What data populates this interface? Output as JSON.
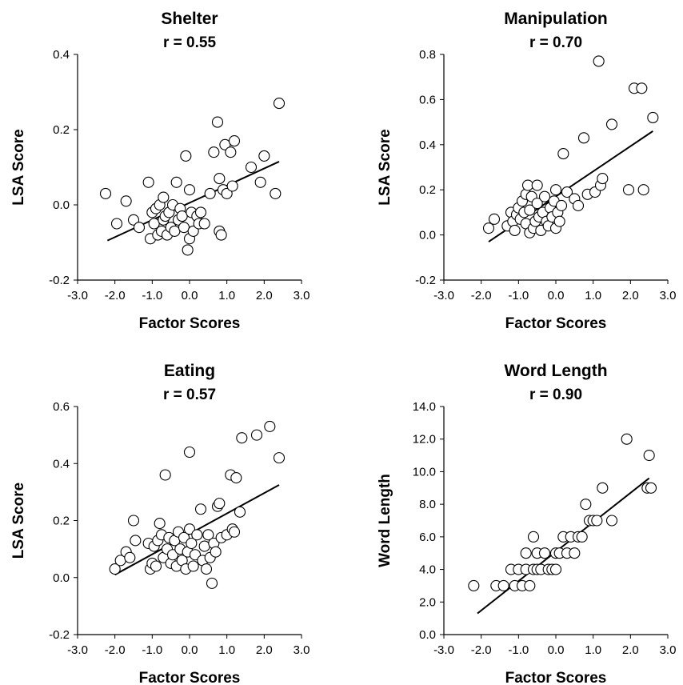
{
  "chart_data": [
    {
      "type": "scatter",
      "title": "Shelter",
      "subtitle": "r = 0.55",
      "xlabel": "Factor Scores",
      "ylabel": "LSA Score",
      "xlim": [
        -3.0,
        3.0
      ],
      "ylim": [
        -0.2,
        0.4
      ],
      "xticks": [
        "-3.0",
        "-2.0",
        "-1.0",
        "0.0",
        "1.0",
        "2.0",
        "3.0"
      ],
      "yticks": [
        "-0.2",
        "0.0",
        "0.2",
        "0.4"
      ],
      "trendline": [
        [
          -2.2,
          -0.095
        ],
        [
          2.4,
          0.115
        ]
      ],
      "x": [
        -2.25,
        -1.95,
        -1.7,
        -1.5,
        -1.35,
        -1.1,
        -1.05,
        -1.0,
        -0.95,
        -0.9,
        -0.85,
        -0.8,
        -0.75,
        -0.7,
        -0.7,
        -0.65,
        -0.6,
        -0.55,
        -0.5,
        -0.45,
        -0.4,
        -0.35,
        -0.3,
        -0.25,
        -0.2,
        -0.15,
        -0.1,
        -0.05,
        0.0,
        0.0,
        0.05,
        0.1,
        0.2,
        0.25,
        0.3,
        0.4,
        0.55,
        0.65,
        0.75,
        0.8,
        0.8,
        0.85,
        0.9,
        0.95,
        1.0,
        1.1,
        1.15,
        1.2,
        1.65,
        1.9,
        2.0,
        2.3,
        2.4
      ],
      "y": [
        0.03,
        -0.05,
        0.01,
        -0.04,
        -0.06,
        0.06,
        -0.09,
        -0.02,
        -0.05,
        -0.01,
        -0.08,
        0.0,
        -0.07,
        0.02,
        -0.04,
        -0.03,
        -0.08,
        -0.02,
        -0.06,
        0.0,
        -0.07,
        0.06,
        -0.04,
        -0.01,
        -0.03,
        -0.06,
        0.13,
        -0.12,
        0.04,
        -0.09,
        -0.02,
        -0.07,
        -0.03,
        -0.05,
        -0.02,
        -0.05,
        0.03,
        0.14,
        0.22,
        -0.07,
        0.07,
        -0.08,
        0.04,
        0.16,
        0.03,
        0.14,
        0.05,
        0.17,
        0.1,
        0.06,
        0.13,
        0.03,
        0.27
      ]
    },
    {
      "type": "scatter",
      "title": "Manipulation",
      "subtitle": "r = 0.70",
      "xlabel": "Factor Scores",
      "ylabel": "LSA Score",
      "xlim": [
        -3.0,
        3.0
      ],
      "ylim": [
        -0.2,
        0.8
      ],
      "xticks": [
        "-3.0",
        "-2.0",
        "-1.0",
        "0.0",
        "1.0",
        "2.0",
        "3.0"
      ],
      "yticks": [
        "-0.2",
        "0.0",
        "0.2",
        "0.4",
        "0.6",
        "0.8"
      ],
      "trendline": [
        [
          -1.8,
          -0.03
        ],
        [
          2.6,
          0.46
        ]
      ],
      "x": [
        -1.8,
        -1.65,
        -1.3,
        -1.2,
        -1.15,
        -1.1,
        -1.05,
        -1.0,
        -0.95,
        -0.9,
        -0.85,
        -0.8,
        -0.8,
        -0.75,
        -0.7,
        -0.7,
        -0.65,
        -0.6,
        -0.55,
        -0.5,
        -0.5,
        -0.45,
        -0.4,
        -0.35,
        -0.3,
        -0.25,
        -0.2,
        -0.15,
        -0.1,
        -0.05,
        0.0,
        0.0,
        0.05,
        0.1,
        0.15,
        0.2,
        0.3,
        0.5,
        0.6,
        0.75,
        0.85,
        1.05,
        1.15,
        1.2,
        1.25,
        1.5,
        1.95,
        2.1,
        2.3,
        2.35,
        2.6
      ],
      "y": [
        0.03,
        0.07,
        0.04,
        0.1,
        0.06,
        0.02,
        0.09,
        0.12,
        0.07,
        0.15,
        0.1,
        0.05,
        0.18,
        0.22,
        0.01,
        0.11,
        0.17,
        0.03,
        0.06,
        0.14,
        0.22,
        0.08,
        0.02,
        0.1,
        0.17,
        0.06,
        0.04,
        0.12,
        0.08,
        0.15,
        0.03,
        0.2,
        0.1,
        0.06,
        0.13,
        0.36,
        0.19,
        0.16,
        0.13,
        0.43,
        0.18,
        0.19,
        0.77,
        0.22,
        0.25,
        0.49,
        0.2,
        0.65,
        0.65,
        0.2,
        0.52
      ]
    },
    {
      "type": "scatter",
      "title": "Eating",
      "subtitle": "r = 0.57",
      "xlabel": "Factor Scores",
      "ylabel": "LSA Score",
      "xlim": [
        -3.0,
        3.0
      ],
      "ylim": [
        -0.2,
        0.6
      ],
      "xticks": [
        "-3.0",
        "-2.0",
        "-1.0",
        "0.0",
        "1.0",
        "2.0",
        "3.0"
      ],
      "yticks": [
        "-0.2",
        "0.0",
        "0.2",
        "0.4",
        "0.6"
      ],
      "trendline": [
        [
          -2.0,
          0.01
        ],
        [
          2.4,
          0.325
        ]
      ],
      "x": [
        -2.0,
        -1.85,
        -1.7,
        -1.6,
        -1.5,
        -1.45,
        -1.1,
        -1.05,
        -1.0,
        -0.95,
        -0.9,
        -0.85,
        -0.8,
        -0.75,
        -0.7,
        -0.65,
        -0.6,
        -0.55,
        -0.5,
        -0.45,
        -0.4,
        -0.35,
        -0.3,
        -0.25,
        -0.2,
        -0.15,
        -0.1,
        -0.05,
        0.0,
        0.0,
        0.05,
        0.1,
        0.15,
        0.2,
        0.3,
        0.35,
        0.4,
        0.45,
        0.5,
        0.55,
        0.6,
        0.65,
        0.7,
        0.75,
        0.8,
        0.85,
        1.0,
        1.1,
        1.15,
        1.2,
        1.25,
        1.35,
        1.4,
        1.8,
        2.15,
        2.4
      ],
      "y": [
        0.03,
        0.06,
        0.09,
        0.07,
        0.2,
        0.13,
        0.12,
        0.03,
        0.05,
        0.11,
        0.04,
        0.13,
        0.19,
        0.15,
        0.07,
        0.36,
        0.1,
        0.14,
        0.05,
        0.08,
        0.13,
        0.04,
        0.16,
        0.1,
        0.06,
        0.14,
        0.03,
        0.09,
        0.17,
        0.44,
        0.12,
        0.04,
        0.08,
        0.15,
        0.24,
        0.06,
        0.11,
        0.03,
        0.15,
        0.07,
        -0.02,
        0.12,
        0.09,
        0.25,
        0.26,
        0.14,
        0.15,
        0.36,
        0.17,
        0.16,
        0.35,
        0.23,
        0.49,
        0.5,
        0.53,
        0.42
      ]
    },
    {
      "type": "scatter",
      "title": "Word Length",
      "subtitle": "r = 0.90",
      "xlabel": "Factor Scores",
      "ylabel": "Word Length",
      "xlim": [
        -3.0,
        3.0
      ],
      "ylim": [
        0.0,
        14.0
      ],
      "xticks": [
        "-3.0",
        "-2.0",
        "-1.0",
        "0.0",
        "1.0",
        "2.0",
        "3.0"
      ],
      "yticks": [
        "0.0",
        "2.0",
        "4.0",
        "6.0",
        "8.0",
        "10.0",
        "12.0",
        "14.0"
      ],
      "trendline": [
        [
          -2.1,
          1.3
        ],
        [
          2.5,
          9.6
        ]
      ],
      "x": [
        -2.2,
        -1.6,
        -1.4,
        -1.2,
        -1.1,
        -1.0,
        -0.9,
        -0.8,
        -0.8,
        -0.7,
        -0.6,
        -0.6,
        -0.5,
        -0.5,
        -0.4,
        -0.3,
        -0.2,
        -0.1,
        0.0,
        0.0,
        0.1,
        0.2,
        0.3,
        0.4,
        0.5,
        0.6,
        0.7,
        0.8,
        0.9,
        1.0,
        1.1,
        1.25,
        1.5,
        1.9,
        2.45,
        2.5,
        2.55
      ],
      "y": [
        3.0,
        3.0,
        3.0,
        4.0,
        3.0,
        4.0,
        3.0,
        5.0,
        4.0,
        3.0,
        6.0,
        4.0,
        5.0,
        4.0,
        4.0,
        5.0,
        4.0,
        4.0,
        5.0,
        4.0,
        5.0,
        6.0,
        5.0,
        6.0,
        5.0,
        6.0,
        6.0,
        8.0,
        7.0,
        7.0,
        7.0,
        9.0,
        7.0,
        12.0,
        9.0,
        11.0,
        9.0
      ]
    }
  ]
}
